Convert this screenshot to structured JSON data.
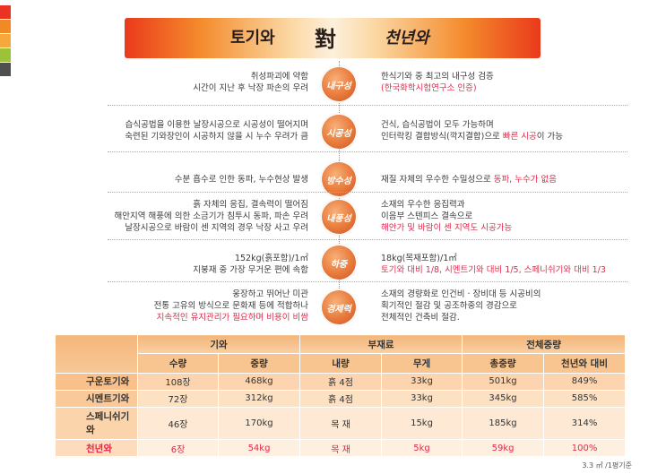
{
  "swatch_colors": [
    "#ea3323",
    "#f08a24",
    "#f5a93c",
    "#9cc23a",
    "#4f4f4f"
  ],
  "banner": {
    "left": "토기와",
    "middle": "對",
    "right": "천년와"
  },
  "rows": [
    {
      "badge": "내구성",
      "left": [
        "취성파괴에 약함",
        "시간이 지난 후 낙장 파손의 우려"
      ],
      "right": [
        {
          "text": "한식기와 중 최고의 내구성 검증",
          "red": false
        },
        {
          "text": "(한국화학시험연구소 인증)",
          "red": true
        }
      ]
    },
    {
      "badge": "시공성",
      "left": [
        "습식공법을 이용한 날장시공으로 시공성이 떨어지며",
        "숙련된 기와장인이 시공하지 않을 시 누수 우려가 큼"
      ],
      "right": [
        {
          "text": "건식, 습식공법이 모두 가능하며",
          "red": false
        },
        {
          "pre": "인터락킹 결합방식(깍지결합)으로 ",
          "red_text": "빠른 시공",
          "post": "이 가능"
        }
      ]
    },
    {
      "badge": "방수성",
      "left": [
        "수분 흡수로 인한 동파, 누수현상 발생"
      ],
      "right": [
        {
          "pre": "재질 자체의 우수한 수밀성으로 ",
          "red_text": "동파, 누수가 없음",
          "post": ""
        }
      ]
    },
    {
      "badge": "내풍성",
      "left": [
        "흙 자체의 응집, 결속력이 떨어짐",
        "해안지역 해풍에 의한 소금기가 침투시 동파, 파손 우려",
        "날장시공으로 바람이 센 지역의 경우 낙장 사고 우려"
      ],
      "right": [
        {
          "text": "소재의 우수한 응집력과",
          "red": false
        },
        {
          "text": "이음부 스텐피스 결속으로",
          "red": false
        },
        {
          "text": "해안가 및 바람이 센 지역도 시공가능",
          "red": true
        }
      ]
    },
    {
      "badge": "하중",
      "left": [
        "152kg(흙포함)/1㎡",
        "지붕재 중 가장 무거운 편에 속함"
      ],
      "right": [
        {
          "text": "18kg(목재포함)/1㎡",
          "red": false
        },
        {
          "text": "토기와 대비 1/8, 시멘트기와 대비 1/5, 스페니쉬기와 대비 1/3",
          "red": true
        }
      ]
    },
    {
      "badge": "경제력",
      "left": [
        "웅장하고 뛰어난 미관",
        "전통 고유의 방식으로 문화재 등에 적합하나",
        "지속적인 유지관리가 필요하며 비용이 비쌈"
      ],
      "left_red_line": 2,
      "right": [
        {
          "text": "소재의 경량화로 인건비 · 장비대 등 시공비의",
          "red": false
        },
        {
          "text": "획기적인 절감 및 공조하중의 경감으로",
          "red": false
        },
        {
          "text": "전체적인 건축비 절감.",
          "red": false
        }
      ]
    }
  ],
  "table": {
    "groups": [
      "기와",
      "부재료",
      "전체중량"
    ],
    "subheaders": [
      "수량",
      "중량",
      "내량",
      "무게",
      "총중량",
      "천년와 대비"
    ],
    "rows": [
      {
        "name": "구운토기와",
        "cells": [
          "108장",
          "468kg",
          "흙 4점",
          "33kg",
          "501kg",
          "849%"
        ]
      },
      {
        "name": "시멘트기와",
        "cells": [
          "72장",
          "312kg",
          "흙 4점",
          "33kg",
          "345kg",
          "585%"
        ]
      },
      {
        "name": "스페니쉬기와",
        "cells": [
          "46장",
          "170kg",
          "목 재",
          "15kg",
          "185kg",
          "314%"
        ]
      },
      {
        "name": "천년와",
        "cells": [
          "6장",
          "54kg",
          "목 재",
          "5kg",
          "59kg",
          "100%"
        ]
      }
    ]
  },
  "footnote": "3.3 ㎡ /1평기준"
}
